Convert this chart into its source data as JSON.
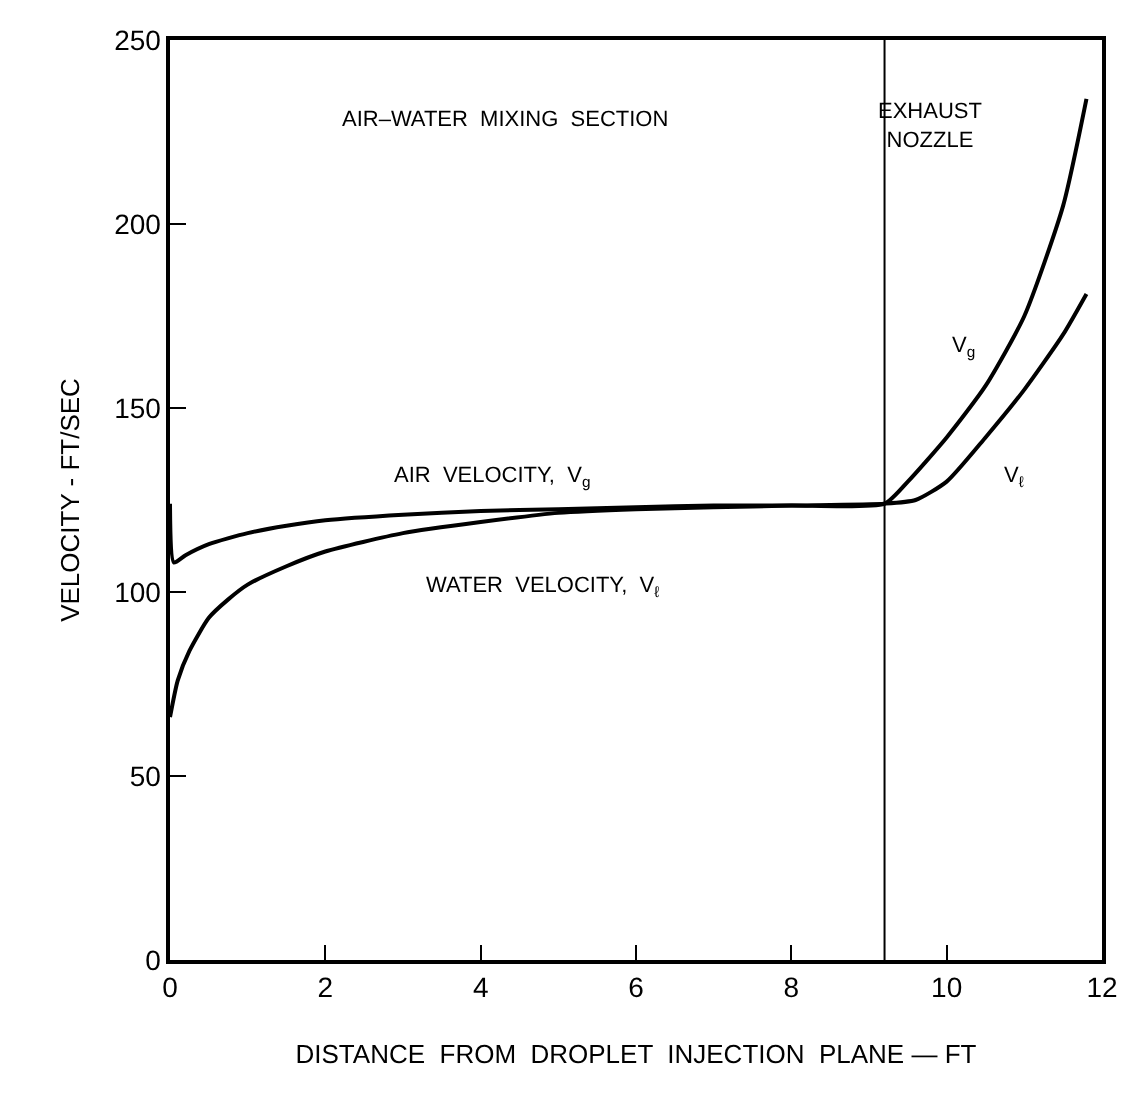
{
  "chart_data": {
    "type": "line",
    "xlabel": "DISTANCE  FROM  DROPLET  INJECTION  PLANE — FT",
    "ylabel": "VELOCITY - FT/SEC",
    "xlim": [
      0,
      12
    ],
    "xticks": [
      0,
      2,
      4,
      6,
      8,
      10,
      12
    ],
    "ylim": [
      0,
      250
    ],
    "yticks": [
      0,
      50,
      100,
      150,
      200,
      250
    ],
    "legend": false,
    "marker": "none",
    "line_style": "solid",
    "series": [
      {
        "name": "AIR  VELOCITY,  V$_{g}$",
        "color": "#000000",
        "x": [
          0,
          0.05,
          0.2,
          0.5,
          1,
          1.5,
          2,
          3,
          4,
          5,
          6,
          7,
          8,
          9.2,
          9.5,
          10,
          10.5,
          11,
          11.5,
          11.8
        ],
        "values": [
          124,
          108,
          110,
          113,
          116,
          118,
          119.5,
          121,
          122,
          122.5,
          123,
          123.5,
          123.5,
          124,
          130,
          142,
          156,
          175,
          205,
          234
        ]
      },
      {
        "name": "WATER  VELOCITY,  V$_{ℓ}$",
        "color": "#000000",
        "x": [
          0,
          0.1,
          0.25,
          0.5,
          0.75,
          1,
          1.5,
          2,
          3,
          4,
          5,
          6,
          7,
          8,
          9.2,
          9.6,
          10,
          10.5,
          11,
          11.5,
          11.8
        ],
        "values": [
          66,
          76,
          84,
          93,
          98,
          102,
          107,
          111,
          116,
          119,
          121.5,
          122.5,
          123,
          123.5,
          124,
          125,
          130,
          142,
          155,
          170,
          181
        ]
      }
    ],
    "ref_lines": [
      {
        "axis": "x",
        "value": 9.2,
        "label": null,
        "color": "#000000",
        "line_style": "solid"
      }
    ],
    "annotations": [
      "AIR–WATER  MIXING  SECTION",
      "EXHAUST\nNOZZLE",
      "V$_{g}$",
      "V$_{ℓ}$"
    ]
  }
}
